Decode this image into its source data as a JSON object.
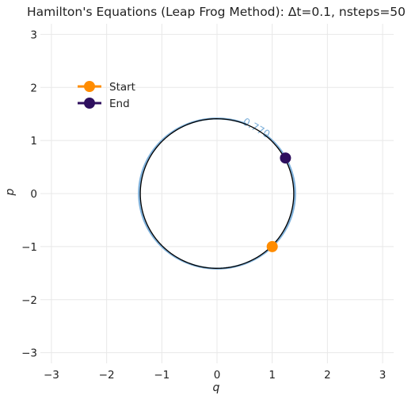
{
  "chart_data": {
    "type": "line",
    "title": "Hamilton's Equations (Leap Frog Method): Δt=0.1, nsteps=50",
    "xlabel": "q",
    "ylabel": "p",
    "xlim": [
      -3.2,
      3.2
    ],
    "ylim": [
      -3.2,
      3.2
    ],
    "xticks": [
      -3,
      -2,
      -1,
      0,
      1,
      2,
      3
    ],
    "yticks": [
      -3,
      -2,
      -1,
      0,
      1,
      2,
      3
    ],
    "xtick_labels": [
      "−3",
      "−2",
      "−1",
      "0",
      "1",
      "2",
      "3"
    ],
    "ytick_labels": [
      "−3",
      "−2",
      "−1",
      "0",
      "1",
      "2",
      "3"
    ],
    "grid": true,
    "legend_position": "top-left",
    "contour": {
      "level": 1.0,
      "label": "0.770",
      "color": "#7fb1db",
      "description": "energy contour q^2 + p^2 = 2"
    },
    "trajectory": {
      "color": "#000000",
      "center": [
        0.0,
        0.0
      ],
      "radius_q": 1.39,
      "radius_p": 1.41,
      "start_angle_deg": -45,
      "end_angle_deg": 28.5
    },
    "series": [
      {
        "name": "Start",
        "color": "#ff8c00",
        "x": [
          1.0
        ],
        "y": [
          -1.0
        ]
      },
      {
        "name": "End",
        "color": "#2e0f5e",
        "x": [
          1.24
        ],
        "y": [
          0.67
        ]
      }
    ]
  }
}
